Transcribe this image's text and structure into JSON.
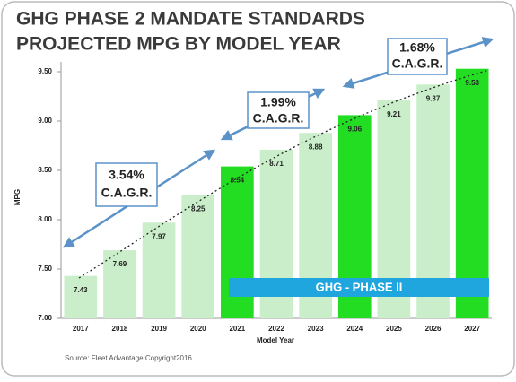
{
  "chart_data": {
    "type": "bar",
    "title": [
      "GHG PHASE 2 MANDATE STANDARDS",
      "PROJECTED MPG BY MODEL YEAR"
    ],
    "categories": [
      "2017",
      "2018",
      "2019",
      "2020",
      "2021",
      "2022",
      "2023",
      "2024",
      "2025",
      "2026",
      "2027"
    ],
    "values": [
      7.43,
      7.69,
      7.97,
      8.25,
      8.54,
      8.71,
      8.88,
      9.06,
      9.21,
      9.37,
      9.53
    ],
    "colors": [
      "#c9eec9",
      "#c9eec9",
      "#c9eec9",
      "#c9eec9",
      "#22dd22",
      "#c9eec9",
      "#c9eec9",
      "#22dd22",
      "#c9eec9",
      "#c9eec9",
      "#22dd22"
    ],
    "ylim": [
      7,
      9.6
    ],
    "yticks": [
      {
        "value": 7,
        "label": "7.00"
      },
      {
        "value": 7.5,
        "label": "7.50"
      },
      {
        "value": 8,
        "label": "8.00"
      },
      {
        "value": 8.5,
        "label": "8.50"
      },
      {
        "value": 9,
        "label": "9.00"
      },
      {
        "value": 9.5,
        "label": "9.50"
      }
    ],
    "ylabel": "MPG",
    "xlabel": "Model Year",
    "grid": false,
    "annotations": [
      [
        "3.54%",
        "C.A.G.R."
      ],
      [
        "1.99%",
        "C.A.G.R."
      ],
      [
        "1.68%",
        "C.A.G.R."
      ]
    ],
    "banner": "GHG - PHASE II",
    "source": "Source: Fleet Advantage;Copyright2016"
  }
}
